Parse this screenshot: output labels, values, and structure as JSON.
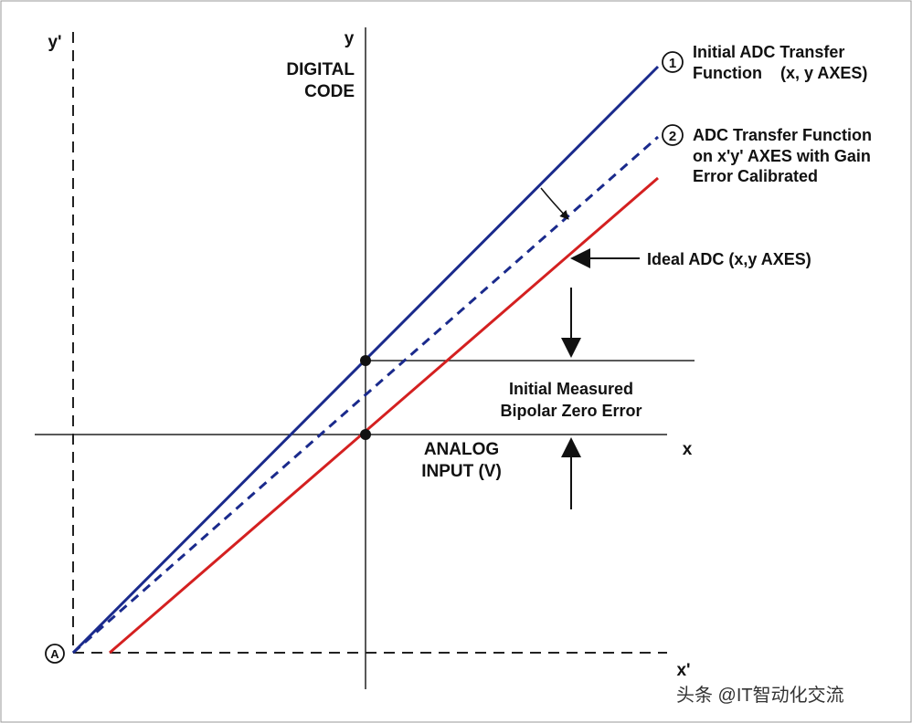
{
  "axes": {
    "y_prime": "y'",
    "y": "y",
    "x": "x",
    "x_prime": "x'",
    "origin": "A",
    "y_title": [
      "DIGITAL",
      "CODE"
    ],
    "x_title": [
      "ANALOG",
      "INPUT (V)"
    ]
  },
  "legend": [
    {
      "marker": "1",
      "lines": [
        "Initial ADC Transfer",
        "Function    (x, y AXES)"
      ]
    },
    {
      "marker": "2",
      "lines": [
        "ADC Transfer Function",
        "on x'y' AXES with Gain",
        "Error Calibrated"
      ]
    }
  ],
  "annotations": {
    "ideal": "Ideal ADC (x,y AXES)",
    "zero_error": [
      "Initial Measured",
      "Bipolar Zero Error"
    ]
  },
  "watermark": "头条 @IT智动化交流"
}
